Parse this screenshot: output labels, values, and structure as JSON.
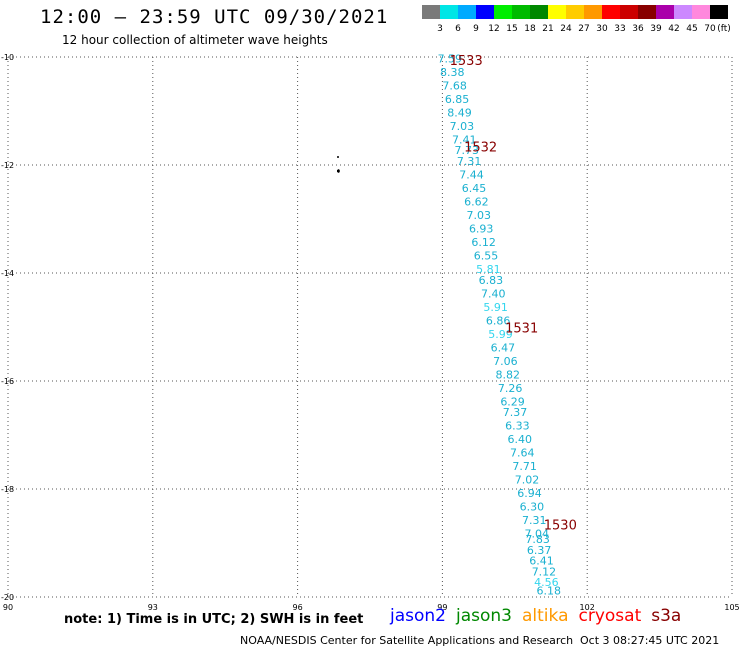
{
  "header": {
    "title": "12:00 – 23:59 UTC 09/30/2021",
    "subtitle": "12 hour collection of altimeter wave heights"
  },
  "legend": {
    "unit": "(ft)",
    "items": [
      {
        "label": "3",
        "color": "#7a7a7a"
      },
      {
        "label": "6",
        "color": "#00e6e6"
      },
      {
        "label": "9",
        "color": "#00aaff"
      },
      {
        "label": "12",
        "color": "#0000ff"
      },
      {
        "label": "15",
        "color": "#00ee00"
      },
      {
        "label": "18",
        "color": "#00bb00"
      },
      {
        "label": "21",
        "color": "#008800"
      },
      {
        "label": "24",
        "color": "#ffff00"
      },
      {
        "label": "27",
        "color": "#ffcc00"
      },
      {
        "label": "30",
        "color": "#ff9900"
      },
      {
        "label": "33",
        "color": "#ff0000"
      },
      {
        "label": "36",
        "color": "#cc0000"
      },
      {
        "label": "39",
        "color": "#880000"
      },
      {
        "label": "42",
        "color": "#aa00aa"
      },
      {
        "label": "45",
        "color": "#cc88ff"
      },
      {
        "label": "70",
        "color": "#ff88dd"
      },
      {
        "label": "",
        "color": "#000000"
      }
    ]
  },
  "map": {
    "lon_range": [
      90,
      105
    ],
    "lat_range": [
      -20,
      -10
    ],
    "lon_ticks": [
      "90",
      "93",
      "96",
      "99",
      "102",
      "105"
    ],
    "lat_ticks": [
      "-10",
      "-12",
      "-14",
      "-16",
      "-18",
      "-20"
    ],
    "time_color": "#880000",
    "time_labels": [
      {
        "text": "1533",
        "lon": 99.15,
        "lat": -10.15
      },
      {
        "text": "1532",
        "lon": 99.45,
        "lat": -11.75
      },
      {
        "text": "1531",
        "lon": 100.3,
        "lat": -15.1
      },
      {
        "text": "1530",
        "lon": 101.1,
        "lat": -18.75
      }
    ],
    "wave_color": "#1ab0d0",
    "wave_color_light": "#33d6ee",
    "wave_points": [
      {
        "v": "7.59",
        "lon": 98.9,
        "lat": -10.1
      },
      {
        "v": "8.38",
        "lon": 98.95,
        "lat": -10.35
      },
      {
        "v": "7.68",
        "lon": 99.0,
        "lat": -10.6
      },
      {
        "v": "6.85",
        "lon": 99.05,
        "lat": -10.85
      },
      {
        "v": "8.49",
        "lon": 99.1,
        "lat": -11.1
      },
      {
        "v": "7.03",
        "lon": 99.15,
        "lat": -11.35
      },
      {
        "v": "7.41",
        "lon": 99.2,
        "lat": -11.6
      },
      {
        "v": "7.73",
        "lon": 99.25,
        "lat": -11.8
      },
      {
        "v": "7.31",
        "lon": 99.3,
        "lat": -12.0
      },
      {
        "v": "7.44",
        "lon": 99.35,
        "lat": -12.25
      },
      {
        "v": "6.45",
        "lon": 99.4,
        "lat": -12.5
      },
      {
        "v": "6.62",
        "lon": 99.45,
        "lat": -12.75
      },
      {
        "v": "7.03",
        "lon": 99.5,
        "lat": -13.0
      },
      {
        "v": "6.93",
        "lon": 99.55,
        "lat": -13.25
      },
      {
        "v": "6.12",
        "lon": 99.6,
        "lat": -13.5
      },
      {
        "v": "6.55",
        "lon": 99.65,
        "lat": -13.75
      },
      {
        "v": "5.81",
        "lon": 99.7,
        "lat": -14.0
      },
      {
        "v": "6.83",
        "lon": 99.75,
        "lat": -14.2
      },
      {
        "v": "7.40",
        "lon": 99.8,
        "lat": -14.45
      },
      {
        "v": "5.91",
        "lon": 99.85,
        "lat": -14.7
      },
      {
        "v": "6.86",
        "lon": 99.9,
        "lat": -14.95
      },
      {
        "v": "5.99",
        "lon": 99.95,
        "lat": -15.2
      },
      {
        "v": "6.47",
        "lon": 100.0,
        "lat": -15.45
      },
      {
        "v": "7.06",
        "lon": 100.05,
        "lat": -15.7
      },
      {
        "v": "8.82",
        "lon": 100.1,
        "lat": -15.95
      },
      {
        "v": "7.26",
        "lon": 100.15,
        "lat": -16.2
      },
      {
        "v": "6.29",
        "lon": 100.2,
        "lat": -16.45
      },
      {
        "v": "7.37",
        "lon": 100.25,
        "lat": -16.65
      },
      {
        "v": "6.33",
        "lon": 100.3,
        "lat": -16.9
      },
      {
        "v": "6.40",
        "lon": 100.35,
        "lat": -17.15
      },
      {
        "v": "7.64",
        "lon": 100.4,
        "lat": -17.4
      },
      {
        "v": "7.71",
        "lon": 100.45,
        "lat": -17.65
      },
      {
        "v": "7.02",
        "lon": 100.5,
        "lat": -17.9
      },
      {
        "v": "6.94",
        "lon": 100.55,
        "lat": -18.15
      },
      {
        "v": "6.30",
        "lon": 100.6,
        "lat": -18.4
      },
      {
        "v": "7.31",
        "lon": 100.65,
        "lat": -18.65
      },
      {
        "v": "7.04",
        "lon": 100.7,
        "lat": -18.9
      },
      {
        "v": "7.83",
        "lon": 100.72,
        "lat": -19.0
      },
      {
        "v": "6.37",
        "lon": 100.75,
        "lat": -19.2
      },
      {
        "v": "6.41",
        "lon": 100.8,
        "lat": -19.4
      },
      {
        "v": "7.12",
        "lon": 100.85,
        "lat": -19.6
      },
      {
        "v": "4.56",
        "lon": 100.9,
        "lat": -19.8
      },
      {
        "v": "6.18",
        "lon": 100.95,
        "lat": -19.95
      }
    ]
  },
  "footer": {
    "note": "note: 1) Time is in UTC; 2) SWH is in feet",
    "satellites": [
      {
        "name": "jason2",
        "color": "#0000ff"
      },
      {
        "name": "jason3",
        "color": "#008800"
      },
      {
        "name": "altika",
        "color": "#ff9900"
      },
      {
        "name": "cryosat",
        "color": "#ff0000"
      },
      {
        "name": "s3a",
        "color": "#880000"
      }
    ],
    "credit": "NOAA/NESDIS Center for Satellite Applications and Research",
    "timestamp": "Oct  3 08:27:45 UTC 2021"
  }
}
